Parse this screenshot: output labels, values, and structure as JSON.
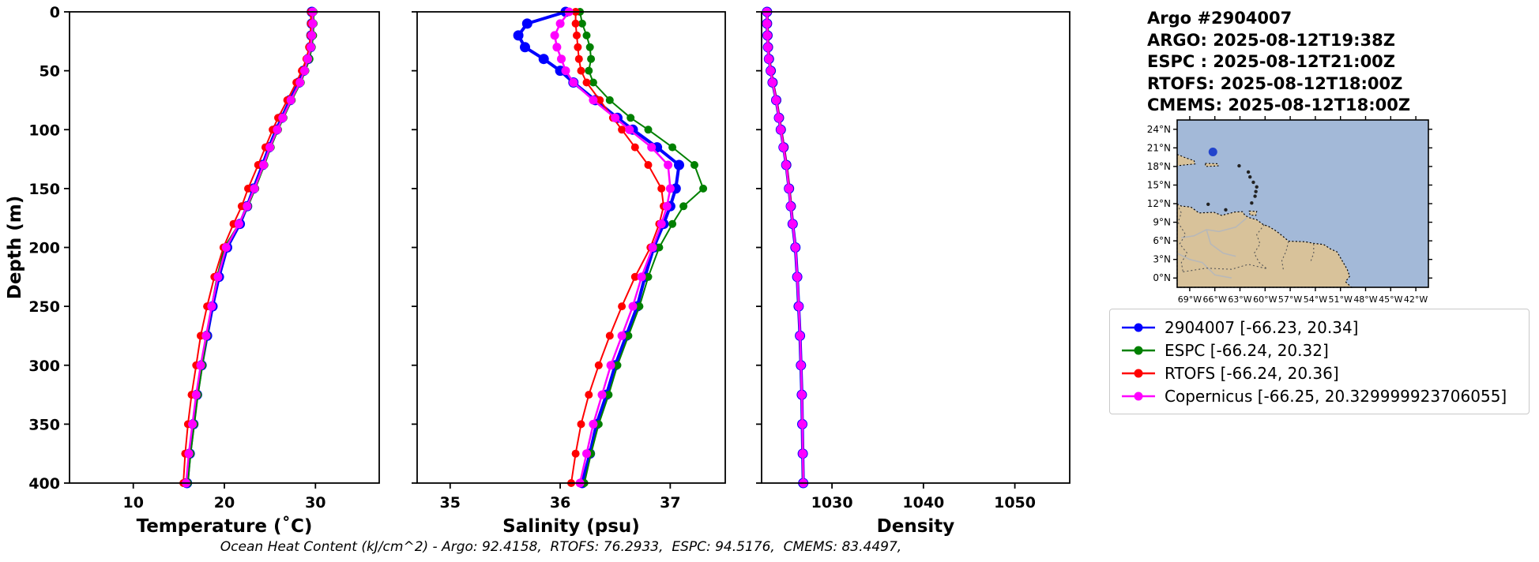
{
  "header": {
    "title": "Argo #2904007",
    "lines": [
      "ARGO: 2025-08-12T19:38Z",
      "ESPC : 2025-08-12T21:00Z",
      "RTOFS: 2025-08-12T18:00Z",
      "CMEMS: 2025-08-12T18:00Z"
    ]
  },
  "legend": {
    "items": [
      {
        "label": "2904007 [-66.23, 20.34]",
        "color": "#0000ff"
      },
      {
        "label": "ESPC [-66.24, 20.32]",
        "color": "#008000"
      },
      {
        "label": "RTOFS [-66.24, 20.36]",
        "color": "#ff0000"
      },
      {
        "label": "Copernicus [-66.25, 20.329999923706055]",
        "color": "#ff00ff"
      }
    ]
  },
  "map": {
    "ocean_color": "#a3b9d8",
    "land_color": "#d8c29a",
    "marker": {
      "lon": -66.23,
      "lat": 20.34,
      "color": "#2244cc"
    },
    "lon_range": [
      -70.5,
      -40.5
    ],
    "lat_range": [
      -1.5,
      25.5
    ],
    "lat_tick_labels": [
      "24°N",
      "21°N",
      "18°N",
      "15°N",
      "12°N",
      "9°N",
      "6°N",
      "3°N",
      "0°N"
    ],
    "lon_tick_labels": [
      "69°W",
      "66°W",
      "63°W",
      "60°W",
      "57°W",
      "54°W",
      "51°W",
      "48°W",
      "45°W",
      "42°W"
    ],
    "land_outline": [
      [
        -70.5,
        11.95
      ],
      [
        -70.0,
        11.6
      ],
      [
        -69.2,
        11.5
      ],
      [
        -68.8,
        11.4
      ],
      [
        -68.3,
        10.9
      ],
      [
        -67.9,
        10.5
      ],
      [
        -67.0,
        10.55
      ],
      [
        -66.1,
        10.6
      ],
      [
        -65.2,
        10.1
      ],
      [
        -64.2,
        10.45
      ],
      [
        -63.6,
        10.65
      ],
      [
        -62.7,
        10.7
      ],
      [
        -62.4,
        10.1
      ],
      [
        -61.9,
        9.75
      ],
      [
        -61.0,
        9.4
      ],
      [
        -60.2,
        8.6
      ],
      [
        -59.6,
        8.35
      ],
      [
        -58.7,
        7.6
      ],
      [
        -57.9,
        6.75
      ],
      [
        -57.2,
        5.95
      ],
      [
        -56.2,
        5.9
      ],
      [
        -55.2,
        5.85
      ],
      [
        -54.2,
        5.6
      ],
      [
        -53.0,
        5.4
      ],
      [
        -52.2,
        4.7
      ],
      [
        -51.4,
        4.2
      ],
      [
        -50.8,
        2.8
      ],
      [
        -50.2,
        1.4
      ],
      [
        -49.9,
        0.3
      ],
      [
        -50.4,
        -0.6
      ],
      [
        -49.7,
        -1.5
      ],
      [
        -70.5,
        -1.5
      ]
    ],
    "hispaniola": [
      [
        -70.5,
        19.95
      ],
      [
        -69.4,
        19.35
      ],
      [
        -68.5,
        18.95
      ],
      [
        -68.35,
        18.4
      ],
      [
        -69.6,
        18.25
      ],
      [
        -70.5,
        18.1
      ]
    ],
    "puerto_rico": [
      [
        -67.15,
        18.5
      ],
      [
        -65.65,
        18.45
      ],
      [
        -65.6,
        18.1
      ],
      [
        -67.1,
        18.0
      ]
    ],
    "trinidad": [
      [
        -61.9,
        10.8
      ],
      [
        -61.0,
        10.75
      ],
      [
        -61.1,
        10.1
      ],
      [
        -61.8,
        10.15
      ]
    ],
    "island_dots": [
      [
        -64.7,
        11.0
      ],
      [
        -63.1,
        18.1
      ],
      [
        -62.0,
        17.1
      ],
      [
        -61.8,
        16.3
      ],
      [
        -61.4,
        15.45
      ],
      [
        -61.0,
        14.7
      ],
      [
        -61.1,
        13.95
      ],
      [
        -61.2,
        13.2
      ],
      [
        -61.6,
        12.1
      ],
      [
        -66.8,
        11.9
      ]
    ],
    "borders": [
      [
        [
          -70.5,
          11.9
        ],
        [
          -70.0,
          10.5
        ],
        [
          -70.4,
          9.0
        ],
        [
          -69.5,
          7.0
        ],
        [
          -70.2,
          5.5
        ],
        [
          -69.3,
          4.0
        ],
        [
          -70.0,
          2.5
        ],
        [
          -69.8,
          1.0
        ]
      ],
      [
        [
          -60.1,
          8.6
        ],
        [
          -61.0,
          7.0
        ],
        [
          -60.6,
          5.5
        ],
        [
          -61.3,
          4.0
        ],
        [
          -60.7,
          2.5
        ],
        [
          -59.8,
          1.5
        ]
      ],
      [
        [
          -57.2,
          5.9
        ],
        [
          -57.5,
          4.3
        ],
        [
          -58.0,
          2.8
        ],
        [
          -57.8,
          1.2
        ]
      ],
      [
        [
          -54.2,
          5.5
        ],
        [
          -54.2,
          4.0
        ],
        [
          -54.6,
          2.5
        ]
      ],
      [
        [
          -69.8,
          1.0
        ],
        [
          -67.0,
          1.6
        ],
        [
          -64.0,
          1.4
        ],
        [
          -62.0,
          2.2
        ],
        [
          -59.8,
          1.5
        ]
      ]
    ],
    "rivers": [
      [
        [
          -62.2,
          9.7
        ],
        [
          -63.5,
          8.2
        ],
        [
          -65.5,
          7.5
        ],
        [
          -67.0,
          7.8
        ],
        [
          -68.5,
          6.8
        ],
        [
          -70.0,
          6.5
        ]
      ],
      [
        [
          -67.0,
          7.8
        ],
        [
          -66.5,
          5.5
        ],
        [
          -65.0,
          4.0
        ],
        [
          -63.5,
          3.5
        ]
      ],
      [
        [
          -70.5,
          4.0
        ],
        [
          -69.0,
          3.0
        ],
        [
          -67.5,
          2.5
        ],
        [
          -66.0,
          0.5
        ],
        [
          -64.0,
          0.0
        ]
      ]
    ]
  },
  "chart_data": {
    "type": "line",
    "ylabel": "Depth (m)",
    "ylim": [
      0,
      400
    ],
    "yticks": [
      0,
      50,
      100,
      150,
      200,
      250,
      300,
      350,
      400
    ],
    "y_inverted": true,
    "grid": false,
    "footnote": "Ocean Heat Content (kJ/cm^2) - Argo: 92.4158,  RTOFS: 76.2933,  ESPC: 94.5176,  CMEMS: 83.4497,",
    "depths": [
      0,
      10,
      20,
      30,
      40,
      50,
      60,
      75,
      90,
      100,
      115,
      130,
      150,
      165,
      180,
      200,
      225,
      250,
      275,
      300,
      325,
      350,
      375,
      400
    ],
    "panels": [
      {
        "xlabel": "Temperature (˚C)",
        "xlim": [
          3,
          37
        ],
        "xticks": [
          10,
          20,
          30
        ],
        "series": [
          {
            "name": "2904007",
            "color": "#0000ff",
            "lw": 4,
            "r": 6.5,
            "values": [
              29.6,
              29.6,
              29.55,
              29.45,
              29.2,
              28.7,
              28.2,
              27.2,
              26.3,
              25.7,
              24.9,
              24.2,
              23.2,
              22.5,
              21.7,
              20.3,
              19.4,
              18.7,
              18.1,
              17.5,
              17.0,
              16.6,
              16.2,
              15.9
            ]
          },
          {
            "name": "ESPC",
            "color": "#008000",
            "lw": 2,
            "r": 5,
            "values": [
              29.8,
              29.8,
              29.75,
              29.6,
              29.35,
              28.9,
              28.4,
              27.4,
              26.5,
              25.9,
              25.1,
              24.4,
              23.4,
              22.6,
              21.6,
              20.0,
              19.2,
              18.6,
              18.1,
              17.6,
              17.1,
              16.7,
              16.3,
              16.0
            ]
          },
          {
            "name": "RTOFS",
            "color": "#ff0000",
            "lw": 2,
            "r": 5,
            "values": [
              29.5,
              29.5,
              29.45,
              29.3,
              29.0,
              28.5,
              27.9,
              26.9,
              25.9,
              25.3,
              24.5,
              23.7,
              22.6,
              21.9,
              21.0,
              19.9,
              18.9,
              18.1,
              17.4,
              16.9,
              16.4,
              16.0,
              15.7,
              15.5
            ]
          },
          {
            "name": "Copernicus",
            "color": "#ff00ff",
            "lw": 2.5,
            "r": 5.5,
            "values": [
              29.7,
              29.7,
              29.6,
              29.5,
              29.15,
              28.8,
              28.3,
              27.3,
              26.4,
              25.8,
              25.0,
              24.3,
              23.3,
              22.5,
              21.6,
              20.2,
              19.3,
              18.6,
              18.0,
              17.4,
              16.9,
              16.5,
              16.1,
              15.8
            ]
          }
        ]
      },
      {
        "xlabel": "Salinity (psu)",
        "xlim": [
          34.7,
          37.5
        ],
        "xticks": [
          35,
          36,
          37
        ],
        "series": [
          {
            "name": "2904007",
            "color": "#0000ff",
            "lw": 4,
            "r": 6.5,
            "values": [
              36.05,
              35.7,
              35.62,
              35.68,
              35.85,
              36.0,
              36.12,
              36.32,
              36.52,
              36.66,
              36.88,
              37.08,
              37.05,
              37.0,
              36.94,
              36.85,
              36.77,
              36.7,
              36.6,
              36.5,
              36.42,
              36.33,
              36.27,
              36.2
            ]
          },
          {
            "name": "ESPC",
            "color": "#008000",
            "lw": 2,
            "r": 5,
            "values": [
              36.18,
              36.2,
              36.24,
              36.27,
              36.28,
              36.26,
              36.3,
              36.45,
              36.64,
              36.8,
              37.02,
              37.22,
              37.3,
              37.12,
              37.02,
              36.9,
              36.8,
              36.72,
              36.62,
              36.52,
              36.44,
              36.35,
              36.28,
              36.22
            ]
          },
          {
            "name": "RTOFS",
            "color": "#ff0000",
            "lw": 2,
            "r": 5,
            "values": [
              36.14,
              36.14,
              36.15,
              36.16,
              36.17,
              36.19,
              36.24,
              36.36,
              36.48,
              36.56,
              36.68,
              36.8,
              36.92,
              36.94,
              36.9,
              36.82,
              36.68,
              36.56,
              36.45,
              36.35,
              36.26,
              36.19,
              36.14,
              36.1
            ]
          },
          {
            "name": "Copernicus",
            "color": "#ff00ff",
            "lw": 2.5,
            "r": 5.5,
            "values": [
              36.08,
              36.0,
              35.95,
              35.97,
              36.01,
              36.05,
              36.12,
              36.3,
              36.5,
              36.63,
              36.83,
              36.98,
              37.0,
              36.97,
              36.92,
              36.84,
              36.74,
              36.66,
              36.56,
              36.46,
              36.38,
              36.3,
              36.24,
              36.18
            ]
          }
        ]
      },
      {
        "xlabel": "Density",
        "xlim": [
          1022.3,
          1056
        ],
        "xticks": [
          1030,
          1040,
          1050
        ],
        "series": [
          {
            "name": "2904007",
            "color": "#0000ff",
            "lw": 4,
            "r": 6.5,
            "values": [
              1022.9,
              1022.9,
              1022.95,
              1023.0,
              1023.1,
              1023.3,
              1023.5,
              1023.9,
              1024.2,
              1024.4,
              1024.7,
              1025.0,
              1025.3,
              1025.5,
              1025.7,
              1026.0,
              1026.2,
              1026.35,
              1026.5,
              1026.6,
              1026.7,
              1026.75,
              1026.8,
              1026.85
            ]
          },
          {
            "name": "ESPC",
            "color": "#008000",
            "lw": 2,
            "r": 5,
            "values": [
              1022.85,
              1022.85,
              1022.9,
              1022.95,
              1023.05,
              1023.25,
              1023.45,
              1023.85,
              1024.15,
              1024.35,
              1024.65,
              1024.95,
              1025.25,
              1025.45,
              1025.68,
              1025.98,
              1026.18,
              1026.33,
              1026.48,
              1026.58,
              1026.68,
              1026.73,
              1026.78,
              1026.83
            ]
          },
          {
            "name": "RTOFS",
            "color": "#ff0000",
            "lw": 2,
            "r": 5,
            "values": [
              1022.95,
              1022.95,
              1023.0,
              1023.05,
              1023.15,
              1023.35,
              1023.55,
              1023.95,
              1024.25,
              1024.45,
              1024.75,
              1025.05,
              1025.35,
              1025.55,
              1025.72,
              1026.02,
              1026.22,
              1026.38,
              1026.52,
              1026.62,
              1026.72,
              1026.78,
              1026.83,
              1026.88
            ]
          },
          {
            "name": "Copernicus",
            "color": "#ff00ff",
            "lw": 2.5,
            "r": 5.5,
            "values": [
              1022.88,
              1022.88,
              1022.93,
              1022.98,
              1023.08,
              1023.28,
              1023.48,
              1023.88,
              1024.18,
              1024.38,
              1024.68,
              1024.98,
              1025.28,
              1025.48,
              1025.7,
              1026.0,
              1026.2,
              1026.36,
              1026.5,
              1026.6,
              1026.7,
              1026.76,
              1026.8,
              1026.86
            ]
          }
        ]
      }
    ]
  }
}
